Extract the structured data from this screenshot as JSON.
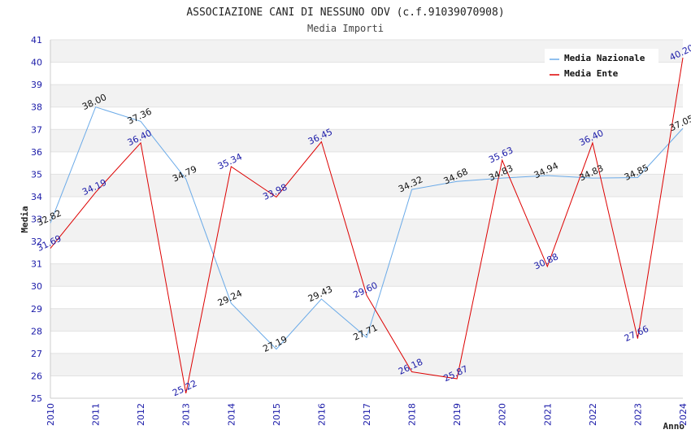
{
  "chart_data": {
    "type": "line",
    "title": "ASSOCIAZIONE CANI DI NESSUNO ODV (c.f.91039070908)",
    "subtitle": "Media Importi",
    "xlabel": "Anno",
    "ylabel": "Media",
    "ylim": [
      25,
      41
    ],
    "yticks": [
      "25",
      "26",
      "27",
      "28",
      "29",
      "30",
      "31",
      "32",
      "33",
      "34",
      "35",
      "36",
      "37",
      "38",
      "39",
      "40",
      "41"
    ],
    "categories": [
      "2010",
      "2011",
      "2012",
      "2013",
      "2014",
      "2015",
      "2016",
      "2017",
      "2018",
      "2019",
      "2020",
      "2021",
      "2022",
      "2023",
      "2024"
    ],
    "series": [
      {
        "name": "Media Nazionale",
        "color": "#6aaae8",
        "label_color": "#111111",
        "values": [
          32.82,
          38.0,
          37.36,
          34.79,
          29.24,
          27.19,
          29.43,
          27.71,
          34.32,
          34.68,
          34.83,
          34.94,
          34.83,
          34.85,
          37.05
        ],
        "labels": [
          "32.82",
          "38.00",
          "37.36",
          "34.79",
          "29.24",
          "27.19",
          "29.43",
          "27.71",
          "34.32",
          "34.68",
          "34.83",
          "34.94",
          "34.83",
          "34.85",
          "37.05"
        ]
      },
      {
        "name": "Media Ente",
        "color": "#dd0000",
        "label_color": "#1a1aa8",
        "values": [
          31.69,
          34.19,
          36.4,
          25.22,
          35.34,
          33.98,
          36.45,
          29.6,
          26.18,
          25.87,
          35.63,
          30.88,
          36.4,
          27.66,
          40.2
        ],
        "labels": [
          "31.69",
          "34.19",
          "36.40",
          "25.22",
          "35.34",
          "33.98",
          "36.45",
          "29.60",
          "26.18",
          "25.87",
          "35.63",
          "30.88",
          "36.40",
          "27.66",
          "40.20"
        ]
      }
    ],
    "grid": true,
    "legend": "top-right"
  }
}
